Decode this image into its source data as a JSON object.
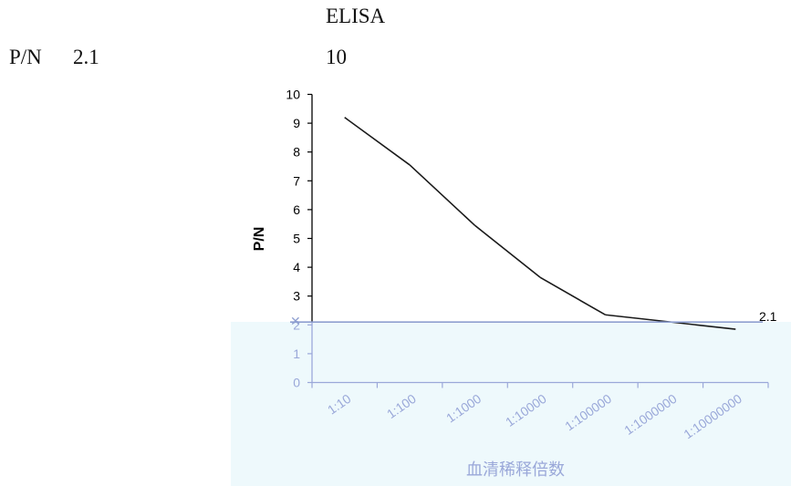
{
  "text": {
    "heading": "ELISA",
    "line_left_1": "P/N",
    "line_left_2": "2.1",
    "line_mid": "10"
  },
  "chart_data": {
    "type": "line",
    "categories": [
      "1:10",
      "1:100",
      "1:1000",
      "1:10000",
      "1:100000",
      "1:1000000",
      "1:10000000"
    ],
    "series": [
      {
        "values": [
          9.2,
          7.55,
          5.45,
          3.65,
          2.35,
          2.1,
          1.85
        ]
      }
    ],
    "y_ticks": [
      "0",
      "1",
      "2",
      "3",
      "4",
      "5",
      "6",
      "7",
      "8",
      "9",
      "10"
    ],
    "ylim": [
      0,
      10
    ],
    "ylabel": "P/N",
    "xlabel": "血清稀释倍数",
    "threshold": {
      "value": 2.1,
      "label": "2.1"
    },
    "colors": {
      "line": "#1a1a1a",
      "threshold": "#8e9fd0",
      "overlay": "#eef9fc",
      "overlay_text": "#9aa8d9"
    },
    "grid": false,
    "legend": "none"
  }
}
